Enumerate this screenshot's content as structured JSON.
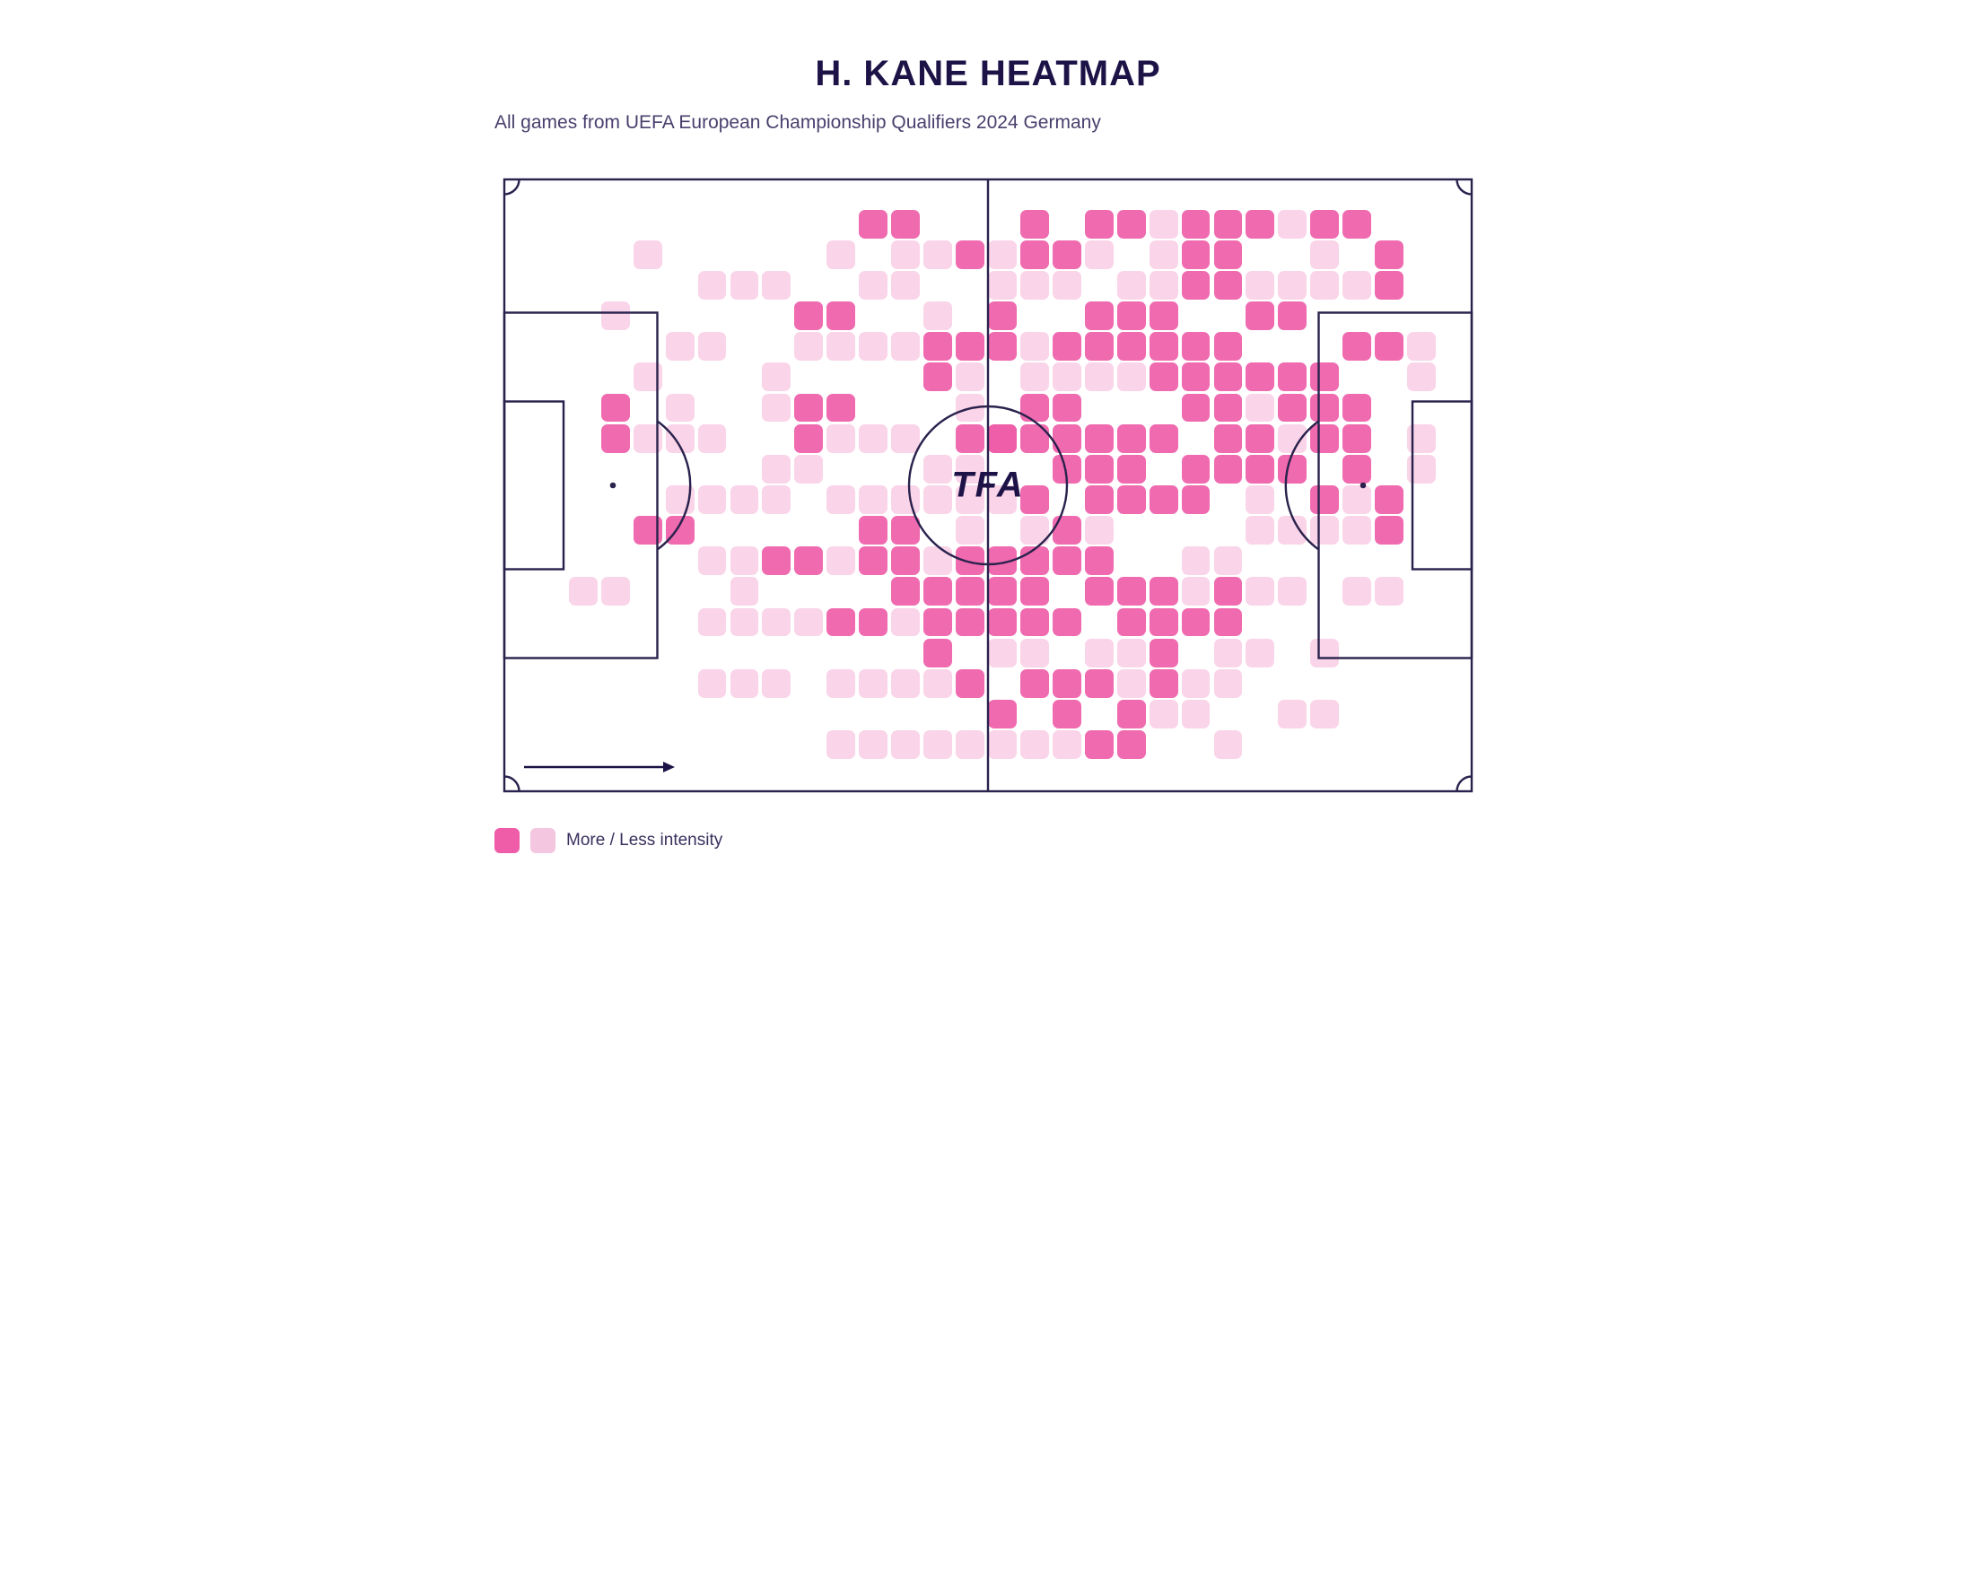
{
  "title": "H. KANE HEATMAP",
  "subtitle": "All games from UEFA European Championship Qualifiers 2024 Germany",
  "watermark": "TFA",
  "legend_text": "More / Less intensity",
  "colors": {
    "background": "#ffffff",
    "text_primary": "#1e1347",
    "text_secondary": "#4a3f6d",
    "pitch_line": "#2a224d",
    "heat_high": "#ef5da8",
    "heat_low": "#fad4e8",
    "legend_high": "#ef5da8",
    "legend_low": "#f5c6df"
  },
  "pitch": {
    "line_width": 2.2,
    "aspect_ratio": 0.64
  },
  "heatmap": {
    "grid_cols": 30,
    "grid_rows": 20,
    "cell_size_pct": 2.9,
    "high_cells": [
      [
        11,
        1
      ],
      [
        12,
        1
      ],
      [
        3,
        7
      ],
      [
        3,
        8
      ],
      [
        4,
        11
      ],
      [
        5,
        11
      ],
      [
        9,
        4
      ],
      [
        10,
        4
      ],
      [
        9,
        7
      ],
      [
        9,
        8
      ],
      [
        10,
        7
      ],
      [
        11,
        11
      ],
      [
        12,
        11
      ],
      [
        10,
        14
      ],
      [
        11,
        14
      ],
      [
        8,
        12
      ],
      [
        9,
        12
      ],
      [
        14,
        2
      ],
      [
        13,
        5
      ],
      [
        14,
        5
      ],
      [
        13,
        6
      ],
      [
        14,
        8
      ],
      [
        15,
        8
      ],
      [
        15,
        4
      ],
      [
        15,
        5
      ],
      [
        16,
        2
      ],
      [
        16,
        1
      ],
      [
        18,
        1
      ],
      [
        17,
        2
      ],
      [
        19,
        1
      ],
      [
        18,
        4
      ],
      [
        19,
        4
      ],
      [
        20,
        4
      ],
      [
        17,
        5
      ],
      [
        18,
        5
      ],
      [
        19,
        5
      ],
      [
        16,
        7
      ],
      [
        17,
        7
      ],
      [
        16,
        8
      ],
      [
        17,
        8
      ],
      [
        18,
        8
      ],
      [
        16,
        10
      ],
      [
        17,
        9
      ],
      [
        18,
        9
      ],
      [
        15,
        12
      ],
      [
        16,
        12
      ],
      [
        16,
        13
      ],
      [
        17,
        12
      ],
      [
        17,
        11
      ],
      [
        18,
        13
      ],
      [
        18,
        12
      ],
      [
        14,
        13
      ],
      [
        15,
        13
      ],
      [
        13,
        14
      ],
      [
        14,
        14
      ],
      [
        15,
        14
      ],
      [
        16,
        14
      ],
      [
        17,
        14
      ],
      [
        13,
        15
      ],
      [
        14,
        16
      ],
      [
        15,
        17
      ],
      [
        16,
        16
      ],
      [
        17,
        16
      ],
      [
        18,
        16
      ],
      [
        19,
        17
      ],
      [
        20,
        16
      ],
      [
        19,
        13
      ],
      [
        20,
        13
      ],
      [
        20,
        14
      ],
      [
        20,
        15
      ],
      [
        21,
        1
      ],
      [
        22,
        1
      ],
      [
        23,
        1
      ],
      [
        21,
        3
      ],
      [
        22,
        3
      ],
      [
        23,
        4
      ],
      [
        24,
        4
      ],
      [
        20,
        5
      ],
      [
        21,
        5
      ],
      [
        20,
        6
      ],
      [
        21,
        6
      ],
      [
        21,
        7
      ],
      [
        22,
        7
      ],
      [
        22,
        8
      ],
      [
        23,
        8
      ],
      [
        19,
        8
      ],
      [
        20,
        8
      ],
      [
        20,
        10
      ],
      [
        21,
        10
      ],
      [
        21,
        9
      ],
      [
        22,
        13
      ],
      [
        19,
        14
      ],
      [
        22,
        14
      ],
      [
        21,
        14
      ],
      [
        25,
        1
      ],
      [
        26,
        1
      ],
      [
        27,
        5
      ],
      [
        26,
        5
      ],
      [
        25,
        6
      ],
      [
        24,
        6
      ],
      [
        25,
        7
      ],
      [
        24,
        7
      ],
      [
        23,
        6
      ],
      [
        22,
        6
      ],
      [
        22,
        9
      ],
      [
        23,
        9
      ],
      [
        24,
        9
      ],
      [
        25,
        10
      ],
      [
        25,
        8
      ],
      [
        26,
        9
      ],
      [
        26,
        7
      ],
      [
        26,
        8
      ],
      [
        27,
        2
      ],
      [
        27,
        3
      ],
      [
        27,
        10
      ],
      [
        27,
        11
      ],
      [
        17,
        17
      ],
      [
        18,
        18
      ],
      [
        19,
        18
      ],
      [
        15,
        8
      ],
      [
        19,
        9
      ],
      [
        19,
        10
      ],
      [
        18,
        10
      ],
      [
        22,
        5
      ],
      [
        11,
        12
      ],
      [
        12,
        12
      ],
      [
        21,
        2
      ],
      [
        22,
        2
      ],
      [
        14,
        12
      ],
      [
        13,
        13
      ],
      [
        12,
        13
      ]
    ],
    "low_cells": [
      [
        4,
        2
      ],
      [
        6,
        3
      ],
      [
        7,
        3
      ],
      [
        8,
        3
      ],
      [
        5,
        5
      ],
      [
        6,
        5
      ],
      [
        4,
        8
      ],
      [
        5,
        8
      ],
      [
        6,
        8
      ],
      [
        5,
        10
      ],
      [
        6,
        10
      ],
      [
        7,
        10
      ],
      [
        6,
        12
      ],
      [
        7,
        12
      ],
      [
        7,
        14
      ],
      [
        8,
        14
      ],
      [
        9,
        14
      ],
      [
        6,
        16
      ],
      [
        7,
        16
      ],
      [
        8,
        16
      ],
      [
        10,
        2
      ],
      [
        12,
        2
      ],
      [
        13,
        2
      ],
      [
        11,
        5
      ],
      [
        12,
        5
      ],
      [
        13,
        4
      ],
      [
        10,
        8
      ],
      [
        11,
        8
      ],
      [
        12,
        8
      ],
      [
        10,
        10
      ],
      [
        11,
        10
      ],
      [
        12,
        10
      ],
      [
        13,
        10
      ],
      [
        13,
        12
      ],
      [
        12,
        14
      ],
      [
        10,
        16
      ],
      [
        11,
        16
      ],
      [
        12,
        16
      ],
      [
        13,
        16
      ],
      [
        10,
        18
      ],
      [
        11,
        18
      ],
      [
        12,
        18
      ],
      [
        13,
        18
      ],
      [
        16,
        3
      ],
      [
        17,
        3
      ],
      [
        16,
        5
      ],
      [
        17,
        6
      ],
      [
        18,
        6
      ],
      [
        19,
        3
      ],
      [
        15,
        10
      ],
      [
        16,
        11
      ],
      [
        15,
        15
      ],
      [
        16,
        15
      ],
      [
        19,
        15
      ],
      [
        19,
        16
      ],
      [
        17,
        18
      ],
      [
        18,
        15
      ],
      [
        14,
        18
      ],
      [
        15,
        18
      ],
      [
        16,
        18
      ],
      [
        16,
        6
      ],
      [
        19,
        6
      ],
      [
        23,
        13
      ],
      [
        24,
        13
      ],
      [
        25,
        2
      ],
      [
        25,
        3
      ],
      [
        24,
        3
      ],
      [
        26,
        3
      ],
      [
        24,
        8
      ],
      [
        25,
        11
      ],
      [
        24,
        11
      ],
      [
        26,
        11
      ],
      [
        26,
        13
      ],
      [
        27,
        13
      ],
      [
        28,
        5
      ],
      [
        28,
        6
      ],
      [
        28,
        8
      ],
      [
        28,
        9
      ],
      [
        22,
        15
      ],
      [
        23,
        15
      ],
      [
        25,
        15
      ],
      [
        21,
        16
      ],
      [
        22,
        16
      ],
      [
        22,
        18
      ],
      [
        24,
        1
      ],
      [
        24,
        17
      ],
      [
        25,
        17
      ],
      [
        26,
        10
      ],
      [
        23,
        11
      ],
      [
        14,
        7
      ],
      [
        14,
        6
      ],
      [
        20,
        3
      ],
      [
        20,
        2
      ],
      [
        8,
        9
      ],
      [
        9,
        9
      ],
      [
        8,
        10
      ],
      [
        8,
        6
      ],
      [
        8,
        7
      ],
      [
        3,
        4
      ],
      [
        2,
        13
      ],
      [
        3,
        13
      ],
      [
        13,
        9
      ],
      [
        14,
        9
      ],
      [
        14,
        10
      ],
      [
        14,
        11
      ],
      [
        21,
        12
      ],
      [
        22,
        12
      ],
      [
        18,
        11
      ],
      [
        23,
        10
      ],
      [
        9,
        5
      ],
      [
        10,
        5
      ],
      [
        15,
        2
      ],
      [
        15,
        3
      ],
      [
        23,
        3
      ],
      [
        18,
        2
      ],
      [
        20,
        1
      ],
      [
        23,
        7
      ],
      [
        6,
        14
      ],
      [
        7,
        13
      ],
      [
        5,
        7
      ],
      [
        4,
        6
      ],
      [
        10,
        12
      ],
      [
        20,
        17
      ],
      [
        21,
        17
      ],
      [
        21,
        13
      ],
      [
        11,
        3
      ],
      [
        12,
        3
      ]
    ]
  }
}
